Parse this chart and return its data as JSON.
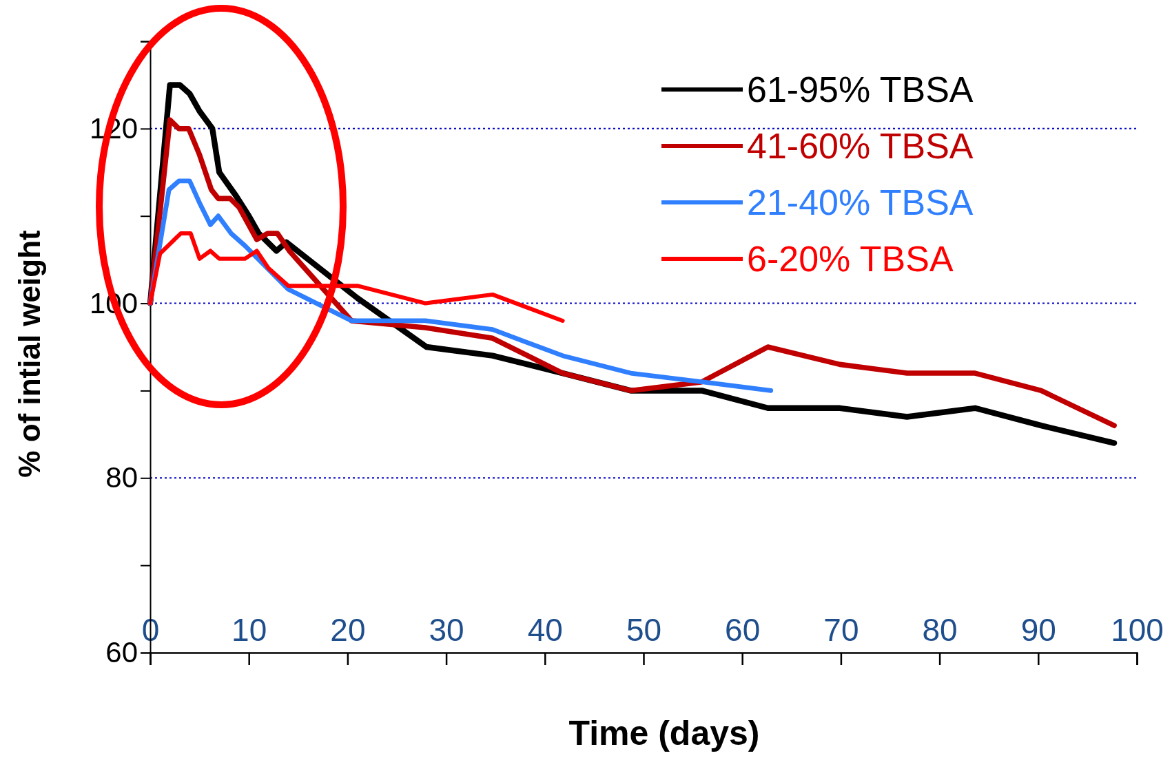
{
  "chart_data": {
    "type": "line",
    "xlabel": "Time (days)",
    "ylabel": "% of intial weight",
    "xlim": [
      0,
      100
    ],
    "xticks": [
      0,
      10,
      20,
      30,
      40,
      50,
      60,
      70,
      80,
      90,
      100
    ],
    "ylim": [
      60,
      130
    ],
    "yticks": [
      60,
      {
        "value": 70,
        "label": null
      },
      80,
      {
        "value": 90,
        "label": null
      },
      100,
      {
        "value": 110,
        "label": null
      },
      120,
      {
        "value": 130,
        "label": null
      }
    ],
    "ref_lines": [
      {
        "axis": "y",
        "value": 80,
        "color": "#0000cc",
        "line_style": "dotted"
      },
      {
        "axis": "y",
        "value": 100,
        "color": "#0000cc",
        "line_style": "dotted"
      },
      {
        "axis": "y",
        "value": 120,
        "color": "#0000cc",
        "line_style": "dotted"
      }
    ],
    "legend": "top right",
    "marker": "none",
    "line_style": "solid",
    "series": [
      {
        "name": "61-95% TBSA",
        "color": "#000000",
        "x": [
          0,
          2,
          3,
          4,
          5,
          6.3,
          7,
          8.7,
          10,
          11,
          12.8,
          13.8,
          21,
          28,
          34.7,
          41.8,
          48.7,
          55.9,
          62.6,
          69.9,
          76.7,
          83.6,
          90.3,
          97.7
        ],
        "values": [
          100,
          125,
          125,
          124,
          122,
          120,
          115,
          112.3,
          110,
          108,
          106,
          107,
          100.6,
          95,
          94,
          92,
          90,
          90,
          88,
          88,
          87,
          88,
          86,
          84
        ]
      },
      {
        "name": "41-60% TBSA",
        "color": "#c00000",
        "x": [
          0,
          2,
          2.9,
          3.9,
          5,
          6.2,
          6.9,
          8.1,
          9,
          10.8,
          11.9,
          12.9,
          14.1,
          20.4,
          27.9,
          34.7,
          41.8,
          48.7,
          55.9,
          62.6,
          69.9,
          76.7,
          83.6,
          90.3,
          97.7
        ],
        "values": [
          100,
          121,
          120,
          120,
          117,
          113,
          112,
          112,
          111,
          107.3,
          108,
          108,
          106,
          98,
          97.2,
          96,
          92,
          90,
          91,
          95,
          93,
          92,
          92,
          90,
          86
        ]
      },
      {
        "name": "21-40% TBSA",
        "color": "#2f7fff",
        "x": [
          0,
          1.9,
          2.9,
          4,
          5,
          6.1,
          6.9,
          8.2,
          9.6,
          14,
          20.4,
          27.9,
          34.7,
          41.8,
          48.7,
          55.9,
          62.9
        ],
        "values": [
          100,
          113,
          114,
          114,
          111.5,
          109,
          110,
          108,
          106.6,
          101.6,
          98,
          98,
          97,
          94,
          92,
          91,
          90
        ]
      },
      {
        "name": "6-20% TBSA",
        "color": "#ff0000",
        "x": [
          0,
          1,
          2,
          3.1,
          4.1,
          5,
          6.1,
          7,
          9.6,
          10.8,
          12,
          14,
          21,
          27.9,
          34.7,
          41.8
        ],
        "values": [
          100,
          105.7,
          106.8,
          108,
          108,
          105.1,
          106,
          105.1,
          105.1,
          106,
          104,
          102,
          102,
          100,
          101,
          98
        ]
      }
    ]
  }
}
